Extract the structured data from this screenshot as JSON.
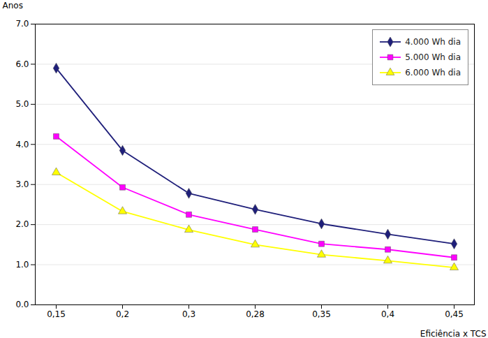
{
  "chart_data": {
    "type": "line",
    "categories": [
      "0,15",
      "0,2",
      "0,3",
      "0,28",
      "0,35",
      "0,4",
      "0,45"
    ],
    "series": [
      {
        "name": "4.000 Wh dia",
        "color": "#1F1F7A",
        "marker": "diamond",
        "values": [
          5.9,
          3.85,
          2.78,
          2.38,
          2.02,
          1.76,
          1.52
        ]
      },
      {
        "name": "5.000 Wh dia",
        "color": "#FF00FF",
        "marker": "square",
        "values": [
          4.2,
          2.93,
          2.25,
          1.88,
          1.52,
          1.38,
          1.18
        ]
      },
      {
        "name": "6.000 Wh dia",
        "color": "#FFFF00",
        "marker": "triangle",
        "values": [
          3.3,
          2.33,
          1.87,
          1.5,
          1.25,
          1.1,
          0.93
        ]
      }
    ],
    "xlabel": "Eficiência x TCS",
    "ylabel": "Anos",
    "ylim": [
      0,
      7
    ],
    "yticks": [
      0,
      1,
      2,
      3,
      4,
      5,
      6,
      7
    ],
    "grid": true,
    "legend": "upper right"
  }
}
